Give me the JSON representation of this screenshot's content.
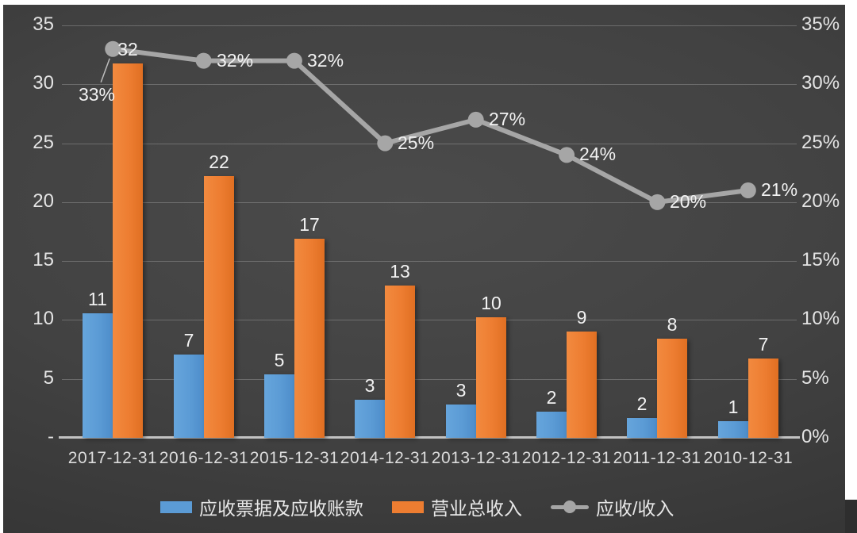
{
  "chart_data": {
    "type": "bar",
    "subtype": "combo-bar-line",
    "title": "",
    "categories": [
      "2017-12-31",
      "2016-12-31",
      "2015-12-31",
      "2014-12-31",
      "2013-12-31",
      "2012-12-31",
      "2011-12-31",
      "2010-12-31"
    ],
    "series": [
      {
        "name": "应收票据及应收账款",
        "type": "bar",
        "axis": "left",
        "color": "#5B9BD5",
        "labels": [
          "11",
          "7",
          "5",
          "3",
          "3",
          "2",
          "2",
          "1"
        ],
        "values": [
          10.6,
          7.1,
          5.4,
          3.2,
          2.8,
          2.2,
          1.7,
          1.4
        ]
      },
      {
        "name": "营业总收入",
        "type": "bar",
        "axis": "left",
        "color": "#ED7D31",
        "labels": [
          "32",
          "22",
          "17",
          "13",
          "10",
          "9",
          "8",
          "7"
        ],
        "values": [
          31.8,
          22.2,
          16.9,
          12.9,
          10.2,
          9.0,
          8.4,
          6.7
        ]
      },
      {
        "name": "应收/收入",
        "type": "line",
        "axis": "right",
        "color": "#A6A6A6",
        "labels": [
          "33%",
          "32%",
          "32%",
          "25%",
          "27%",
          "24%",
          "20%",
          "21%"
        ],
        "values": [
          33,
          32,
          32,
          25,
          27,
          24,
          20,
          21
        ]
      }
    ],
    "left_axis": {
      "min": 0,
      "max": 35,
      "tick_labels": [
        "35",
        "30",
        "25",
        "20",
        "15",
        "10",
        "5",
        "-"
      ]
    },
    "right_axis": {
      "min": 0,
      "max": 35,
      "unit": "%",
      "tick_labels": [
        "35%",
        "30%",
        "25%",
        "20%",
        "15%",
        "10%",
        "5%",
        "0%"
      ]
    },
    "grid": true,
    "legend_position": "bottom"
  },
  "colors": {
    "background_dark": "#3f3f3f",
    "bar_blue": "#5B9BD5",
    "bar_orange": "#ED7D31",
    "line_gray": "#A6A6A6",
    "gridline": "rgba(255,255,255,0.22)",
    "baseline": "#C2C2C2",
    "text_light": "#E8E8E8",
    "frame_white": "#FFFFFF"
  }
}
